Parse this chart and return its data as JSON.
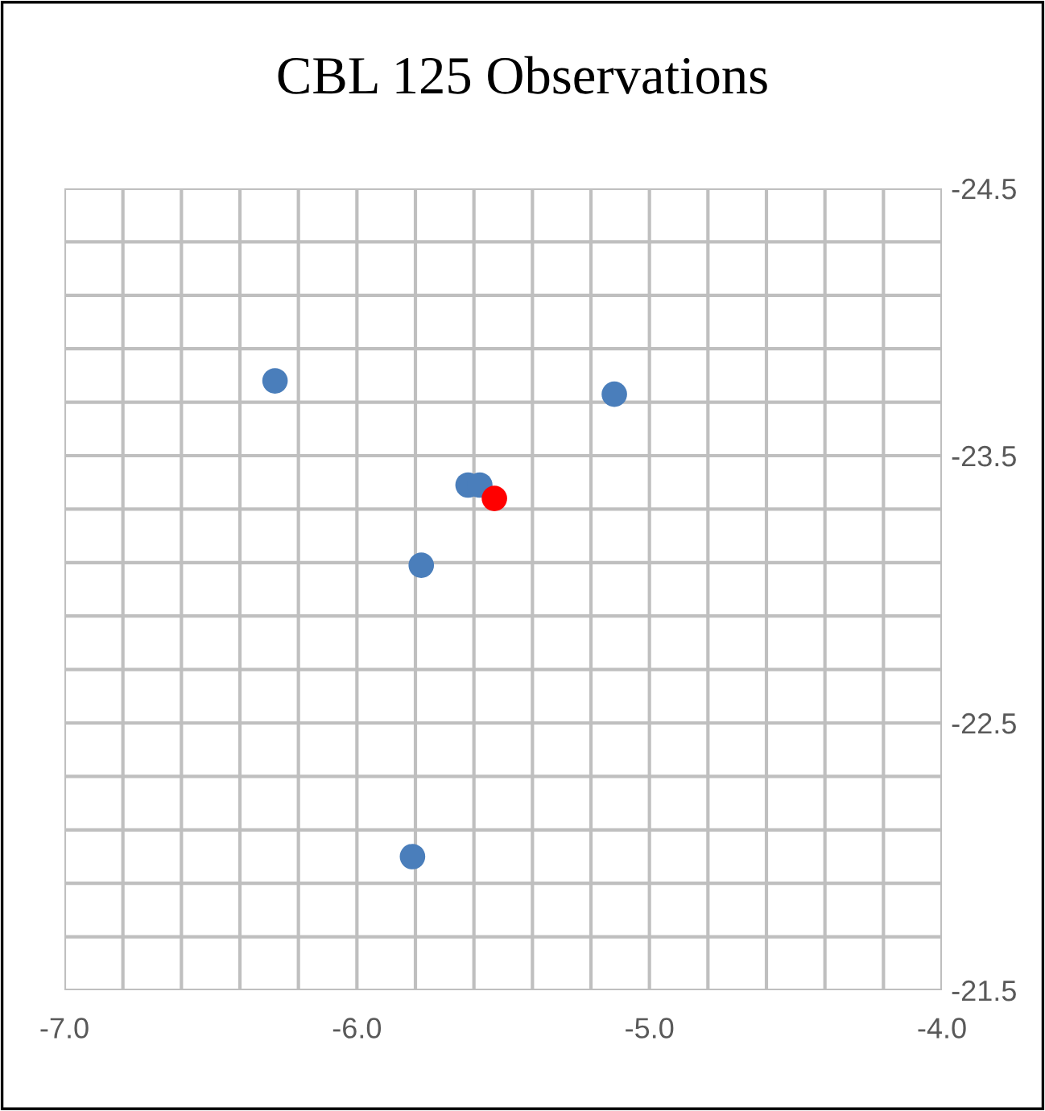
{
  "chart_data": {
    "type": "scatter",
    "title": "CBL 125 Observations",
    "series": [
      {
        "color": "#4a7ebb",
        "x": [
          -6.28,
          -5.12,
          -5.62,
          -5.58,
          -5.78,
          -5.81
        ],
        "values": [
          -23.78,
          -23.73,
          -23.39,
          -23.39,
          -23.09,
          -22.0
        ]
      },
      {
        "color": "#ff0000",
        "x": [
          -5.53
        ],
        "values": [
          -23.34
        ]
      }
    ],
    "marker": "circle",
    "xlim": [
      -7.0,
      -4.0
    ],
    "xticks": [
      {
        "value": -7.0,
        "label": "-7.0"
      },
      {
        "value": -6.0,
        "label": "-6.0"
      },
      {
        "value": -5.0,
        "label": "-5.0"
      },
      {
        "value": -4.0,
        "label": "-4.0"
      }
    ],
    "ylim": [
      -21.5,
      -24.5
    ],
    "yticks": [
      -24.5,
      -23.5,
      -22.5,
      -21.5
    ],
    "grid": true
  }
}
